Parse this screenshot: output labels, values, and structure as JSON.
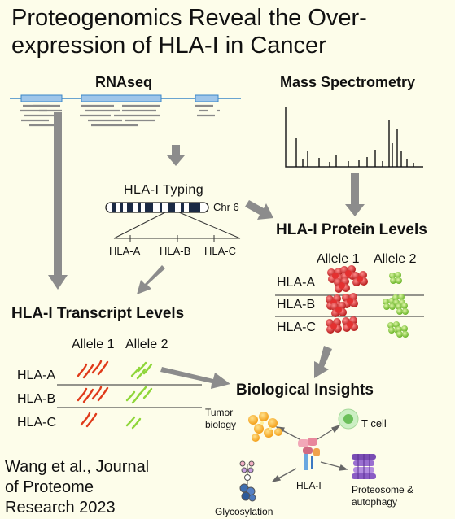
{
  "title": {
    "line1": "Proteogenomics Reveal the Over-",
    "line2": "expression of HLA-I in Cancer"
  },
  "sections": {
    "rnaseq": "RNAseq",
    "mass_spec": "Mass Spectrometry",
    "typing": "HLA-I Typing",
    "chromosome": "Chr 6",
    "protein_levels": "HLA-I Protein Levels",
    "transcript_levels": "HLA-I Transcript Levels",
    "insights": "Biological Insights"
  },
  "genes": [
    "HLA-A",
    "HLA-B",
    "HLA-C"
  ],
  "alleles": [
    "Allele 1",
    "Allele 2"
  ],
  "insights": {
    "center": "HLA-I",
    "tumor": [
      "Tumor",
      "biology"
    ],
    "tcell": "T cell",
    "glyco": "Glycosylation",
    "proteasome": [
      "Proteosome &",
      "autophagy"
    ]
  },
  "citation": [
    "Wang et al., Journal",
    "of Proteome",
    "Research 2023"
  ],
  "colors": {
    "background": "#fdfdea",
    "allele1": "#d42020",
    "allele2": "#7ccf2a",
    "arrow": "#8c8c8c",
    "genome_line": "#3a86c8"
  }
}
